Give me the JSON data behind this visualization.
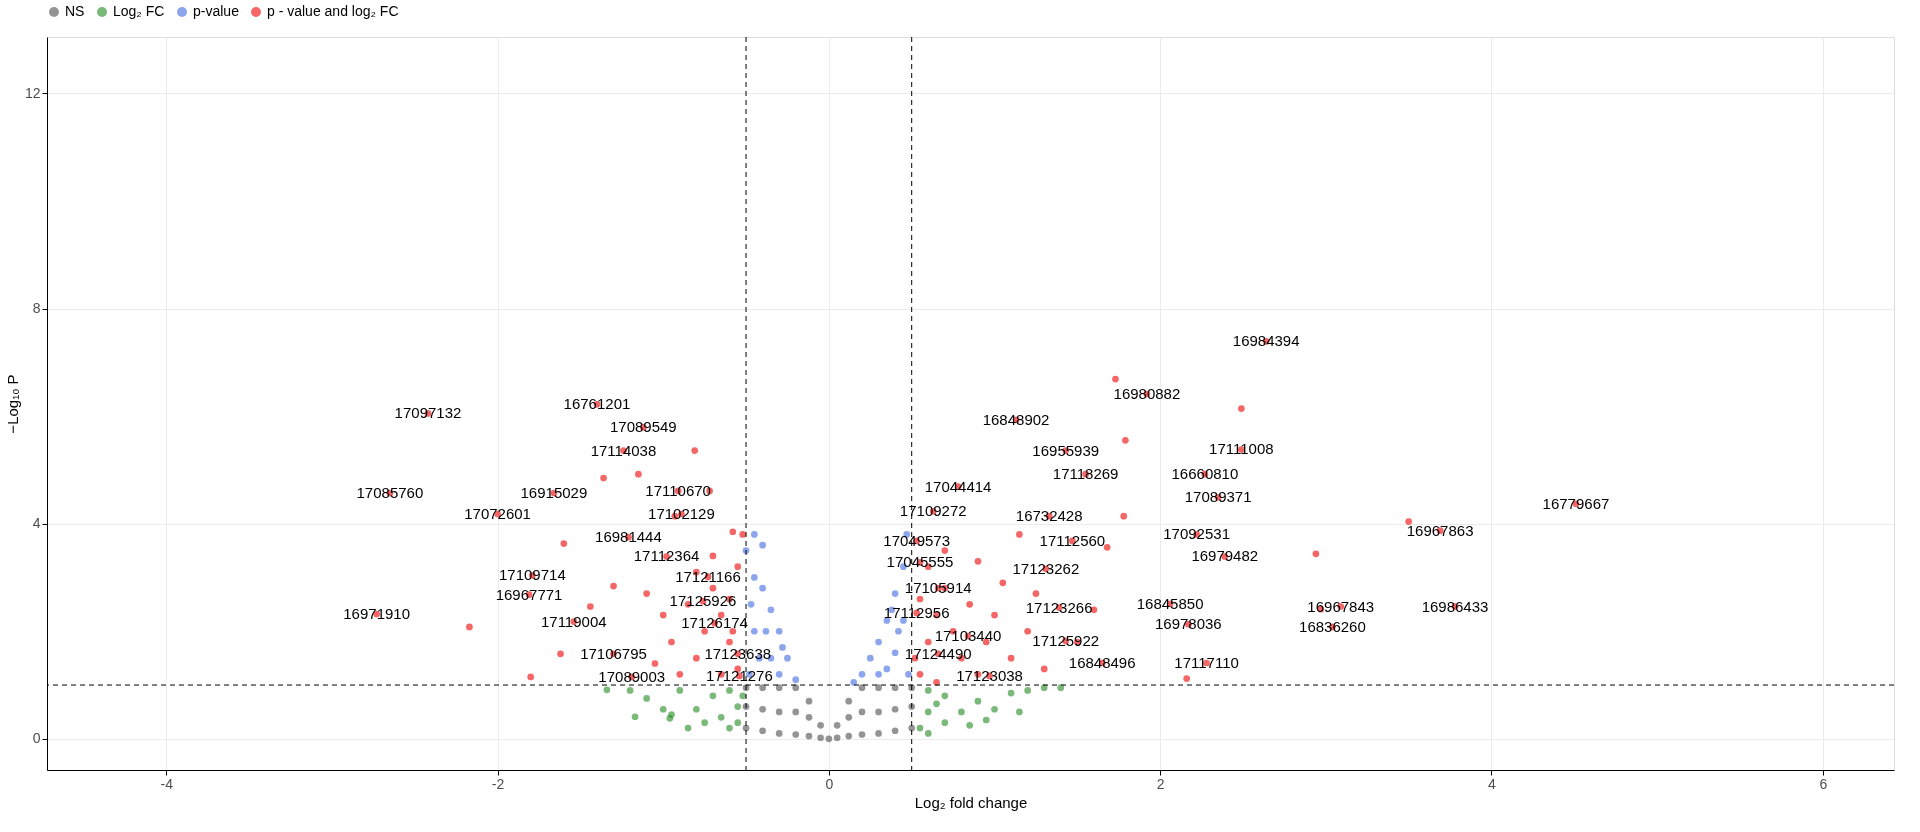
{
  "chart_data": {
    "type": "scatter",
    "xlabel": "Log₂ fold change",
    "ylabel": "−Log₁₀ P",
    "xlim": [
      -4.72,
      6.43
    ],
    "ylim": [
      -0.58,
      13.05
    ],
    "xticks": [
      -4,
      -2,
      0,
      2,
      4,
      6
    ],
    "yticks": [
      0,
      4,
      8,
      12
    ],
    "grid": true,
    "legend": "top",
    "marker": "circle",
    "series": [
      {
        "name": "NS",
        "color": "#4d4d4d",
        "x": [
          -0.5,
          -0.5,
          -0.5,
          -0.4,
          -0.4,
          -0.4,
          -0.3,
          -0.3,
          -0.3,
          -0.2,
          -0.2,
          -0.2,
          -0.12,
          -0.12,
          -0.12,
          -0.05,
          -0.05,
          0,
          0.05,
          0.05,
          0.12,
          0.12,
          0.12,
          0.2,
          0.2,
          0.2,
          0.3,
          0.3,
          0.3,
          0.4,
          0.4,
          0.4,
          0.5,
          0.5,
          0.5
        ],
        "values": [
          0.2,
          0.6,
          0.95,
          0.15,
          0.55,
          0.95,
          0.1,
          0.5,
          0.95,
          0.08,
          0.5,
          0.95,
          0.05,
          0.4,
          0.7,
          0.02,
          0.25,
          0,
          0.02,
          0.25,
          0.05,
          0.4,
          0.7,
          0.08,
          0.5,
          0.95,
          0.1,
          0.5,
          0.95,
          0.15,
          0.55,
          0.95,
          0.2,
          0.6,
          0.95
        ]
      },
      {
        "name": "Log₂ FC",
        "color": "#228b22",
        "x": [
          -1.34,
          -1.17,
          -0.96,
          -1.2,
          -1.0,
          -0.9,
          -0.8,
          -0.75,
          -0.7,
          -0.65,
          -0.6,
          -0.55,
          -0.55,
          -0.52,
          -0.6,
          -0.95,
          -1.1,
          -0.85,
          0.6,
          0.6,
          0.6,
          0.7,
          0.7,
          0.8,
          0.9,
          1.0,
          1.1,
          1.2,
          1.3,
          0.55,
          0.65,
          0.85,
          1.4,
          0.95,
          1.15
        ],
        "values": [
          0.91,
          0.41,
          0.38,
          0.9,
          0.55,
          0.9,
          0.55,
          0.3,
          0.8,
          0.4,
          0.2,
          0.6,
          0.3,
          0.8,
          0.9,
          0.45,
          0.75,
          0.2,
          0.1,
          0.5,
          0.9,
          0.3,
          0.8,
          0.5,
          0.7,
          0.55,
          0.85,
          0.9,
          0.95,
          0.2,
          0.65,
          0.25,
          0.95,
          0.35,
          0.5
        ]
      },
      {
        "name": "p-value",
        "color": "#4169e1",
        "x": [
          -0.45,
          -0.4,
          -0.5,
          -0.45,
          -0.4,
          -0.35,
          -0.3,
          -0.25,
          -0.2,
          -0.45,
          -0.35,
          -0.3,
          -0.48,
          -0.42,
          -0.38,
          -0.47,
          -0.28,
          0.47,
          0.45,
          0.4,
          0.35,
          0.3,
          0.25,
          0.2,
          0.15,
          0.45,
          0.4,
          0.35,
          0.48,
          0.3,
          0.42,
          0.38
        ],
        "values": [
          3.8,
          3.6,
          3.5,
          3.0,
          2.8,
          2.4,
          2.0,
          1.5,
          1.1,
          2.0,
          1.5,
          1.2,
          1.2,
          1.5,
          2.0,
          2.5,
          1.7,
          3.8,
          3.2,
          2.7,
          2.2,
          1.8,
          1.5,
          1.2,
          1.05,
          2.2,
          1.6,
          1.3,
          1.2,
          1.2,
          2.0,
          2.4
        ]
      },
      {
        "name": "p - value and log₂ FC",
        "color": "#ee0000",
        "x": [
          -2.42,
          -1.4,
          -1.12,
          -1.24,
          -2.65,
          -1.66,
          -0.91,
          -2.0,
          -0.89,
          -1.21,
          -0.98,
          -0.73,
          -1.79,
          -1.81,
          -0.76,
          -2.73,
          -1.54,
          -0.69,
          -1.3,
          -0.55,
          -1.19,
          -0.54,
          2.64,
          1.92,
          1.13,
          1.43,
          2.49,
          1.55,
          2.27,
          0.78,
          2.35,
          0.63,
          1.33,
          4.51,
          3.69,
          2.22,
          0.53,
          1.47,
          0.55,
          2.39,
          1.31,
          0.66,
          0.53,
          1.39,
          2.06,
          3.09,
          3.78,
          3.04,
          2.17,
          0.84,
          1.43,
          0.66,
          1.65,
          2.28,
          0.97,
          -2.17,
          -1.8,
          -1.6,
          -1.36,
          -0.81,
          -1.15,
          -0.72,
          -0.93,
          -0.58,
          -1.62,
          -1.44,
          -1.3,
          -0.55,
          -0.6,
          -0.65,
          -0.7,
          -0.6,
          -0.55,
          -0.8,
          -0.75,
          -0.85,
          -0.9,
          -0.95,
          -1.0,
          -0.65,
          -0.7,
          -0.58,
          -0.52,
          -1.05,
          -0.8,
          -1.1,
          2.49,
          1.73,
          1.79,
          2.94,
          3.5,
          2.97,
          2.16,
          1.78,
          1.68,
          0.55,
          0.6,
          0.65,
          0.7,
          0.55,
          0.6,
          0.8,
          0.75,
          0.85,
          0.9,
          0.95,
          1.0,
          1.1,
          1.2,
          0.7,
          0.9,
          1.05,
          1.3,
          1.5,
          1.6,
          0.52,
          0.65,
          1.15,
          1.25
        ],
        "values": [
          6.05,
          6.22,
          5.79,
          5.36,
          4.57,
          4.57,
          4.61,
          4.18,
          4.18,
          3.75,
          3.39,
          3.01,
          3.04,
          2.68,
          2.56,
          2.32,
          2.18,
          2.15,
          1.58,
          1.58,
          1.15,
          1.17,
          7.39,
          6.41,
          5.93,
          5.36,
          5.38,
          4.92,
          4.92,
          4.69,
          4.49,
          4.23,
          4.14,
          4.37,
          3.87,
          3.8,
          3.68,
          3.68,
          3.28,
          3.39,
          3.16,
          2.8,
          2.34,
          2.44,
          2.51,
          2.46,
          2.46,
          2.08,
          2.13,
          1.91,
          1.82,
          1.58,
          1.41,
          1.41,
          1.17,
          2.08,
          1.15,
          3.63,
          4.85,
          5.36,
          4.92,
          4.61,
          4.14,
          3.85,
          1.58,
          2.46,
          2.84,
          1.3,
          1.8,
          2.3,
          2.8,
          2.6,
          3.2,
          1.5,
          2.0,
          2.5,
          1.2,
          1.8,
          2.3,
          1.2,
          3.4,
          2.0,
          3.8,
          1.4,
          3.1,
          2.7,
          6.14,
          6.69,
          5.55,
          3.44,
          4.04,
          2.41,
          1.12,
          4.14,
          3.56,
          1.2,
          1.8,
          2.3,
          2.8,
          2.6,
          3.2,
          1.5,
          2.0,
          2.5,
          1.2,
          1.8,
          2.3,
          1.5,
          2.0,
          3.5,
          3.3,
          2.9,
          1.3,
          1.8,
          2.4,
          1.5,
          1.05,
          3.8,
          2.7
        ]
      }
    ],
    "ref_lines": [
      {
        "axis": "x",
        "value": -0.5,
        "line_style": "dashed"
      },
      {
        "axis": "x",
        "value": 0.5,
        "line_style": "dashed"
      },
      {
        "axis": "y",
        "value": 1,
        "line_style": "dashed"
      }
    ],
    "annotations": [
      {
        "text": "17097132",
        "x": -2.42,
        "y": 6.05
      },
      {
        "text": "16761201",
        "x": -1.4,
        "y": 6.22
      },
      {
        "text": "17089549",
        "x": -1.12,
        "y": 5.79
      },
      {
        "text": "17114038",
        "x": -1.24,
        "y": 5.36
      },
      {
        "text": "17085760",
        "x": -2.65,
        "y": 4.57
      },
      {
        "text": "16915029",
        "x": -1.66,
        "y": 4.57
      },
      {
        "text": "17110670",
        "x": -0.91,
        "y": 4.61
      },
      {
        "text": "17072601",
        "x": -2.0,
        "y": 4.18
      },
      {
        "text": "17102129",
        "x": -0.89,
        "y": 4.18
      },
      {
        "text": "16981444",
        "x": -1.21,
        "y": 3.75
      },
      {
        "text": "17112364",
        "x": -0.98,
        "y": 3.39
      },
      {
        "text": "17121166",
        "x": -0.73,
        "y": 3.01
      },
      {
        "text": "17109714",
        "x": -1.79,
        "y": 3.04
      },
      {
        "text": "16967771",
        "x": -1.81,
        "y": 2.68
      },
      {
        "text": "17125926",
        "x": -0.76,
        "y": 2.56
      },
      {
        "text": "16971910",
        "x": -2.73,
        "y": 2.32
      },
      {
        "text": "17119004",
        "x": -1.54,
        "y": 2.18
      },
      {
        "text": "17126174",
        "x": -0.69,
        "y": 2.15
      },
      {
        "text": "17106795",
        "x": -1.3,
        "y": 1.58
      },
      {
        "text": "17123638",
        "x": -0.55,
        "y": 1.58
      },
      {
        "text": "17089003",
        "x": -1.19,
        "y": 1.15
      },
      {
        "text": "17121276",
        "x": -0.54,
        "y": 1.17
      },
      {
        "text": "16984394",
        "x": 2.64,
        "y": 7.39
      },
      {
        "text": "16980882",
        "x": 1.92,
        "y": 6.41
      },
      {
        "text": "16848902",
        "x": 1.13,
        "y": 5.93
      },
      {
        "text": "16955939",
        "x": 1.43,
        "y": 5.36
      },
      {
        "text": "17111008",
        "x": 2.49,
        "y": 5.38
      },
      {
        "text": "17118269",
        "x": 1.55,
        "y": 4.92
      },
      {
        "text": "16660810",
        "x": 2.27,
        "y": 4.92
      },
      {
        "text": "17044414",
        "x": 0.78,
        "y": 4.69
      },
      {
        "text": "17089371",
        "x": 2.35,
        "y": 4.49
      },
      {
        "text": "17109272",
        "x": 0.63,
        "y": 4.23
      },
      {
        "text": "16732428",
        "x": 1.33,
        "y": 4.14
      },
      {
        "text": "16779667",
        "x": 4.51,
        "y": 4.37
      },
      {
        "text": "16967863",
        "x": 3.69,
        "y": 3.87
      },
      {
        "text": "17092531",
        "x": 2.22,
        "y": 3.8
      },
      {
        "text": "17049573",
        "x": 0.53,
        "y": 3.68
      },
      {
        "text": "17112560",
        "x": 1.47,
        "y": 3.68
      },
      {
        "text": "17045555",
        "x": 0.55,
        "y": 3.28
      },
      {
        "text": "16979482",
        "x": 2.39,
        "y": 3.39
      },
      {
        "text": "17123262",
        "x": 1.31,
        "y": 3.16
      },
      {
        "text": "17105914",
        "x": 0.66,
        "y": 2.8
      },
      {
        "text": "17112956",
        "x": 0.53,
        "y": 2.34
      },
      {
        "text": "17123266",
        "x": 1.39,
        "y": 2.44
      },
      {
        "text": "16845850",
        "x": 2.06,
        "y": 2.51
      },
      {
        "text": "16967843",
        "x": 3.09,
        "y": 2.46
      },
      {
        "text": "16986433",
        "x": 3.78,
        "y": 2.46
      },
      {
        "text": "16836260",
        "x": 3.04,
        "y": 2.08
      },
      {
        "text": "16978036",
        "x": 2.17,
        "y": 2.13
      },
      {
        "text": "17103440",
        "x": 0.84,
        "y": 1.91
      },
      {
        "text": "17125922",
        "x": 1.43,
        "y": 1.82
      },
      {
        "text": "17124490",
        "x": 0.66,
        "y": 1.58
      },
      {
        "text": "16848496",
        "x": 1.65,
        "y": 1.41
      },
      {
        "text": "17117110",
        "x": 2.28,
        "y": 1.41
      },
      {
        "text": "17123038",
        "x": 0.97,
        "y": 1.17
      }
    ]
  }
}
